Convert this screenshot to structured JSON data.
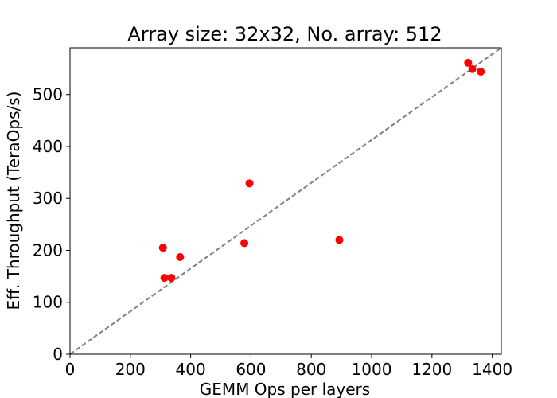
{
  "chart_data": {
    "type": "scatter",
    "title": "Array size: 32x32, No. array: 512",
    "xlabel": "GEMM Ops per layers",
    "ylabel": "Eff. Throughput (TeraOps/s)",
    "xlim": [
      0,
      1430
    ],
    "ylim": [
      0,
      590
    ],
    "xticks": [
      0,
      200,
      400,
      600,
      800,
      1000,
      1200,
      1400
    ],
    "yticks": [
      0,
      100,
      200,
      300,
      400,
      500
    ],
    "grid": false,
    "points_color": "#ff0000",
    "reference_line": {
      "style": "dashed",
      "color": "#808080",
      "x": [
        0,
        1430
      ],
      "y": [
        0,
        590
      ]
    },
    "points": [
      {
        "x": 308,
        "y": 205
      },
      {
        "x": 313,
        "y": 147
      },
      {
        "x": 336,
        "y": 147
      },
      {
        "x": 365,
        "y": 187
      },
      {
        "x": 578,
        "y": 214
      },
      {
        "x": 595,
        "y": 329
      },
      {
        "x": 893,
        "y": 220
      },
      {
        "x": 1320,
        "y": 561
      },
      {
        "x": 1334,
        "y": 549
      },
      {
        "x": 1362,
        "y": 544
      }
    ]
  }
}
